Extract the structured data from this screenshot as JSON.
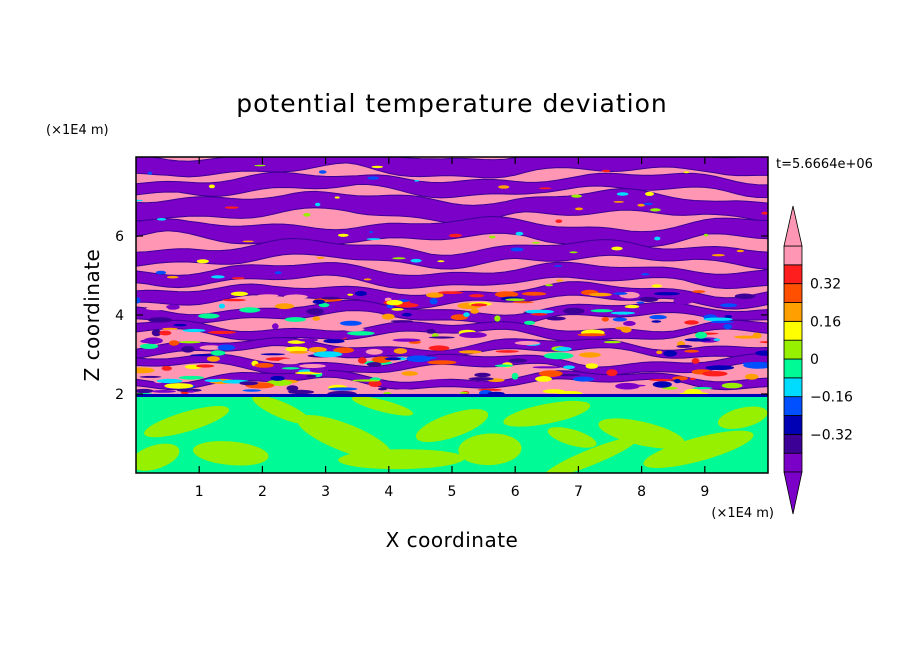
{
  "chart_data": {
    "type": "heatmap",
    "title": "potential temperature deviation",
    "xlabel": "X coordinate",
    "ylabel": "Z coordinate",
    "x_unit": "(×1E4 m)",
    "z_unit": "(×1E4 m)",
    "time_label": "t=5.6664e+06",
    "xlim": [
      0,
      10
    ],
    "ylim": [
      0,
      8
    ],
    "x_ticks": [
      "1",
      "2",
      "3",
      "4",
      "5",
      "6",
      "7",
      "8",
      "9"
    ],
    "y_ticks": [
      "2",
      "4",
      "6"
    ],
    "colorbar": {
      "levels": [
        -0.48,
        -0.4,
        -0.32,
        -0.24,
        -0.16,
        -0.08,
        0,
        0.08,
        0.16,
        0.24,
        0.32,
        0.4,
        0.48
      ],
      "tick_labels": [
        "0.32",
        "0.16",
        "0",
        "−0.16",
        "−0.32"
      ],
      "tick_values": [
        0.32,
        0.16,
        0,
        -0.16,
        -0.32
      ],
      "colors": [
        "#7b00c8",
        "#3c0096",
        "#0000b4",
        "#0050ff",
        "#00dcff",
        "#00fa96",
        "#96f000",
        "#ffff00",
        "#ffa000",
        "#ff5000",
        "#ff1e1e",
        "#ff96b4"
      ],
      "extend": "both"
    },
    "layers": {
      "mixed_layer_top": 1.95,
      "lower_background": "#00fa96",
      "lower_patches": "#96f000",
      "upper_background": "#ff96b4",
      "upper_bands": "#7b00c8"
    }
  }
}
